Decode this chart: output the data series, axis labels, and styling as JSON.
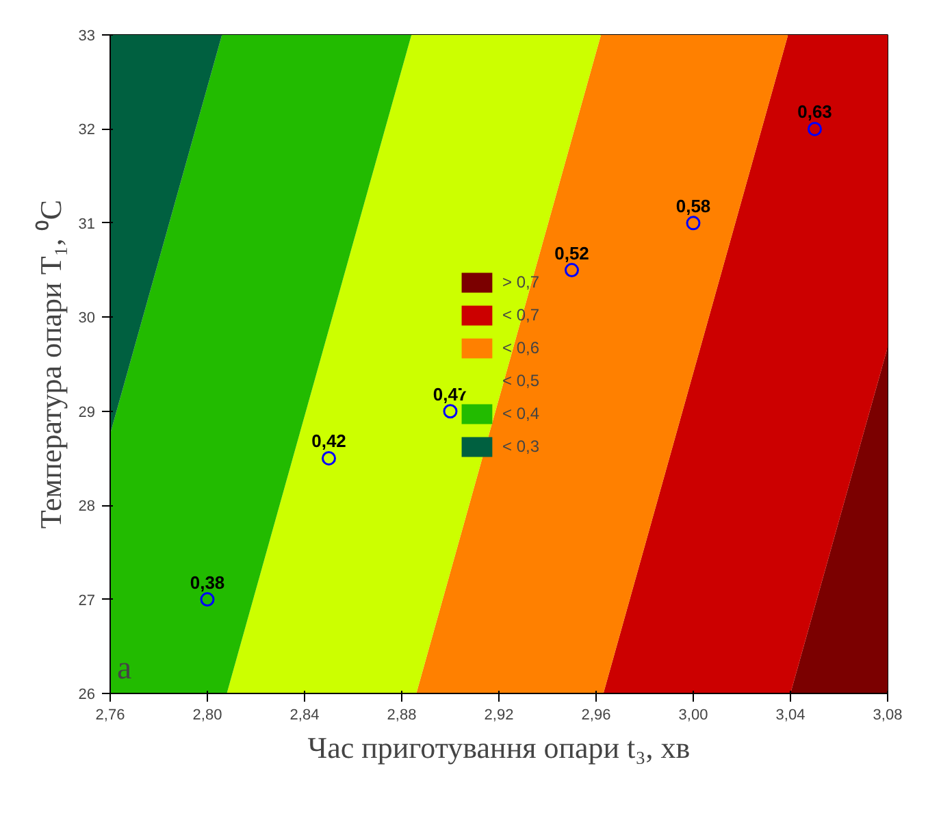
{
  "chart_data": {
    "type": "area",
    "xlabel": "Час приготування опари t₃, хв",
    "ylabel": "Температура опари T₁, ⁰C",
    "series": [
      {
        "name": "> 0,7",
        "color": "#7b0000",
        "x": [
          3.04,
          3.08
        ],
        "values": [
          26,
          29.68
        ]
      },
      {
        "name": "< 0,7",
        "color": "#cc0000",
        "x": [
          2.963,
          3.039,
          3.08
        ],
        "values": [
          26,
          33,
          33
        ]
      },
      {
        "name": "< 0,6",
        "color": "#ff8000",
        "x": [
          2.886,
          2.962,
          3.039
        ],
        "values": [
          26,
          33,
          33
        ]
      },
      {
        "name": "< 0,5",
        "color": "#ccff00",
        "x": [
          2.808,
          2.884,
          2.962
        ],
        "values": [
          26,
          33,
          33
        ]
      },
      {
        "name": "< 0,4",
        "color": "#22bb00",
        "x": [
          2.76,
          2.806,
          2.884
        ],
        "values": [
          28.76,
          33,
          33
        ]
      },
      {
        "name": "< 0,3",
        "color": "#006040",
        "x": [
          2.76,
          2.806
        ],
        "values": [
          33,
          33
        ]
      },
      {
        "type": "scatter",
        "color": "#0000ff",
        "marker": "circle",
        "x": [
          2.8,
          2.85,
          2.9,
          2.95,
          3.0,
          3.05
        ],
        "values": [
          27,
          28.5,
          29,
          30.5,
          31,
          32
        ]
      }
    ],
    "annotations": [
      {
        "text": "0,38",
        "x": 2.8,
        "y": 27
      },
      {
        "text": "0,42",
        "x": 2.85,
        "y": 28.5
      },
      {
        "text": "0,47",
        "x": 2.9,
        "y": 29
      },
      {
        "text": "0,52",
        "x": 2.95,
        "y": 30.5
      },
      {
        "text": "0,58",
        "x": 3.0,
        "y": 31
      },
      {
        "text": "0,63",
        "x": 3.05,
        "y": 32
      },
      "а"
    ],
    "xlim": [
      2.76,
      3.08
    ],
    "xticks": [
      {
        "value": 2.76,
        "label": "2,76"
      },
      {
        "value": 2.8,
        "label": "2,80"
      },
      {
        "value": 2.84,
        "label": "2,84"
      },
      {
        "value": 2.88,
        "label": "2,88"
      },
      {
        "value": 2.92,
        "label": "2,92"
      },
      {
        "value": 2.96,
        "label": "2,96"
      },
      {
        "value": 3.0,
        "label": "3,00"
      },
      {
        "value": 3.04,
        "label": "3,04"
      },
      {
        "value": 3.08,
        "label": "3,08"
      }
    ],
    "ylim": [
      26,
      33
    ],
    "yticks": [
      26,
      27,
      28,
      29,
      30,
      31,
      32,
      33
    ],
    "legend": "center"
  }
}
